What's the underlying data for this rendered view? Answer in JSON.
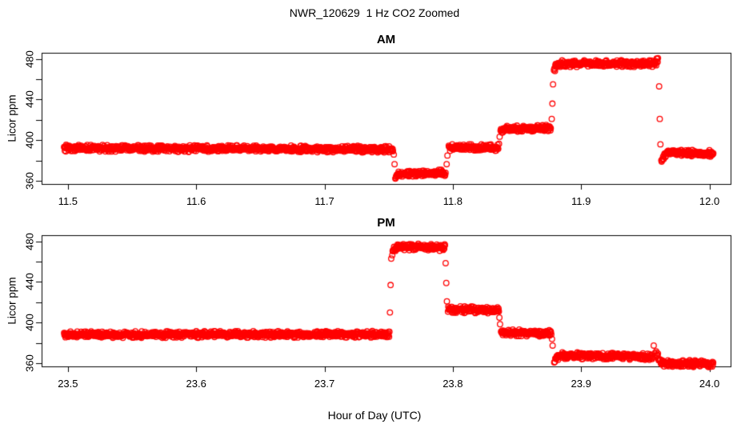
{
  "chart_data": {
    "type": "scatter",
    "title": "NWR_120629  1 Hz CO2 Zoomed",
    "xlabel": "Hour of Day (UTC)",
    "ylabel": "Licor ppm",
    "point_style": "open-circle",
    "point_color": "#FF0000",
    "axis_color": "#000000",
    "sample_rate_hz": 1,
    "grid": false,
    "legend": null,
    "panels": [
      {
        "title": "AM",
        "xlim": [
          11.4795,
          12.0165
        ],
        "ylim": [
          357,
          486
        ],
        "xticks": [
          11.5,
          11.6,
          11.7,
          11.8,
          11.9,
          12.0
        ],
        "xtick_labels": [
          "11.5",
          "11.6",
          "11.7",
          "11.8",
          "11.9",
          "12.0"
        ],
        "yticks": [
          360,
          380,
          400,
          420,
          440,
          460,
          480
        ],
        "ytick_labels": [
          "360",
          "",
          "400",
          "",
          "440",
          "",
          "480"
        ],
        "segments": [
          {
            "x0": 11.497,
            "x1": 11.7535,
            "y0": 392.3,
            "y1": 391.2
          },
          {
            "x0": 11.7552,
            "x1": 11.7945,
            "y0": 367.5,
            "y1": 367.8,
            "lead_in": 363.0
          },
          {
            "x0": 11.7968,
            "x1": 11.8355,
            "y0": 392.8,
            "y1": 392.8
          },
          {
            "x0": 11.8372,
            "x1": 11.8765,
            "y0": 410.8,
            "y1": 412.0
          },
          {
            "x0": 11.8788,
            "x1": 11.96,
            "y0": 475.3,
            "y1": 475.3,
            "lead_in": 470.0,
            "lead_out": 479.5
          },
          {
            "x0": 11.9625,
            "x1": 12.003,
            "y0": 387.5,
            "y1": 387.0,
            "lead_in": 379.0
          }
        ],
        "transition_points": [
          [
            11.754,
            386.0
          ],
          [
            11.7546,
            376.5
          ],
          [
            11.7952,
            376.5
          ],
          [
            11.7958,
            385.0
          ],
          [
            11.836,
            396.5
          ],
          [
            11.8365,
            403.5
          ],
          [
            11.8771,
            421.0
          ],
          [
            11.8776,
            436.0
          ],
          [
            11.8781,
            455.0
          ],
          [
            11.9608,
            453.0
          ],
          [
            11.9613,
            421.0
          ],
          [
            11.9618,
            396.0
          ]
        ]
      },
      {
        "title": "PM",
        "xlim": [
          23.4795,
          24.0165
        ],
        "ylim": [
          357,
          486
        ],
        "xticks": [
          23.5,
          23.6,
          23.7,
          23.8,
          23.9,
          24.0
        ],
        "xtick_labels": [
          "23.5",
          "23.6",
          "23.7",
          "23.8",
          "23.9",
          "24.0"
        ],
        "yticks": [
          360,
          380,
          400,
          420,
          440,
          460,
          480
        ],
        "ytick_labels": [
          "360",
          "",
          "400",
          "",
          "440",
          "",
          "480"
        ],
        "segments": [
          {
            "x0": 23.497,
            "x1": 23.7505,
            "y0": 388.2,
            "y1": 388.6
          },
          {
            "x0": 23.7528,
            "x1": 23.7938,
            "y0": 474.8,
            "y1": 473.8,
            "lead_in": 469.5
          },
          {
            "x0": 23.7962,
            "x1": 23.8358,
            "y0": 413.2,
            "y1": 411.8
          },
          {
            "x0": 23.8376,
            "x1": 23.8768,
            "y0": 390.2,
            "y1": 389.6
          },
          {
            "x0": 23.879,
            "x1": 23.9558,
            "y0": 367.8,
            "y1": 366.6,
            "lead_in": 363.0
          },
          {
            "x0": 23.9585,
            "x1": 24.003,
            "y0": 360.2,
            "y1": 359.6,
            "lead_in": 370.0
          }
        ],
        "transition_points": [
          [
            23.751,
            410.0
          ],
          [
            23.7515,
            437.0
          ],
          [
            23.752,
            463.0
          ],
          [
            23.7944,
            458.5
          ],
          [
            23.7949,
            439.0
          ],
          [
            23.7954,
            421.0
          ],
          [
            23.8363,
            405.0
          ],
          [
            23.8368,
            398.5
          ],
          [
            23.8773,
            384.0
          ],
          [
            23.8778,
            377.5
          ],
          [
            23.9566,
            377.5
          ],
          [
            23.9574,
            370.0
          ]
        ]
      }
    ]
  }
}
